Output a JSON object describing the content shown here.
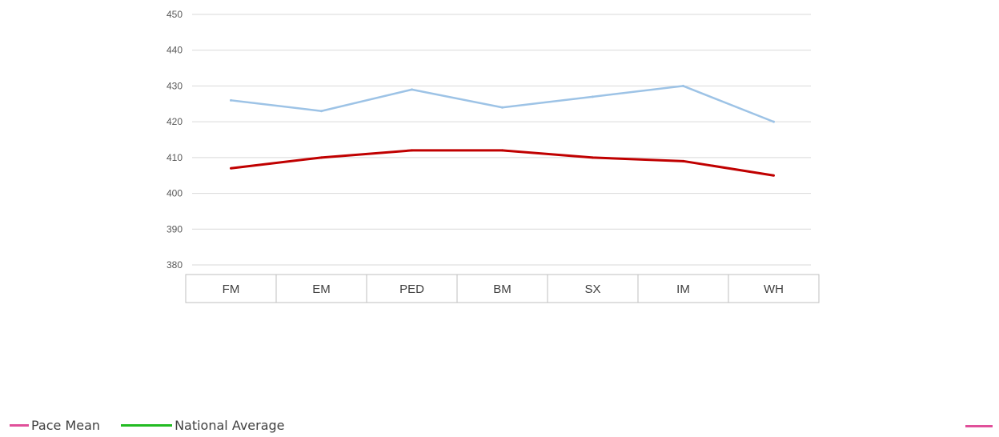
{
  "colors": {
    "series_light": "#9dc3e6",
    "series_dark": "#c00000",
    "grid": "#d9d9d9",
    "table_border": "#bfbfbf",
    "pace_mean": "#e0509a",
    "national_average": "#22bb22"
  },
  "chart_data": {
    "type": "line",
    "categories": [
      "FM",
      "EM",
      "PED",
      "BM",
      "SX",
      "IM",
      "WH"
    ],
    "series": [
      {
        "values": [
          426,
          423,
          429,
          424,
          427,
          430,
          420
        ],
        "color": "#9dc3e6"
      },
      {
        "values": [
          407,
          410,
          412,
          412,
          410,
          409,
          405
        ],
        "color": "#c00000"
      }
    ],
    "ylim": [
      380,
      450
    ],
    "yticks": [
      380,
      390,
      400,
      410,
      420,
      430,
      440,
      450
    ],
    "grid": true,
    "title": "",
    "xlabel": "",
    "ylabel": ""
  },
  "legend": {
    "placement": "bottom-left",
    "items": [
      {
        "label": "Pace Mean",
        "color": "#e0509a"
      },
      {
        "label": "National Average",
        "color": "#22bb22"
      }
    ]
  }
}
